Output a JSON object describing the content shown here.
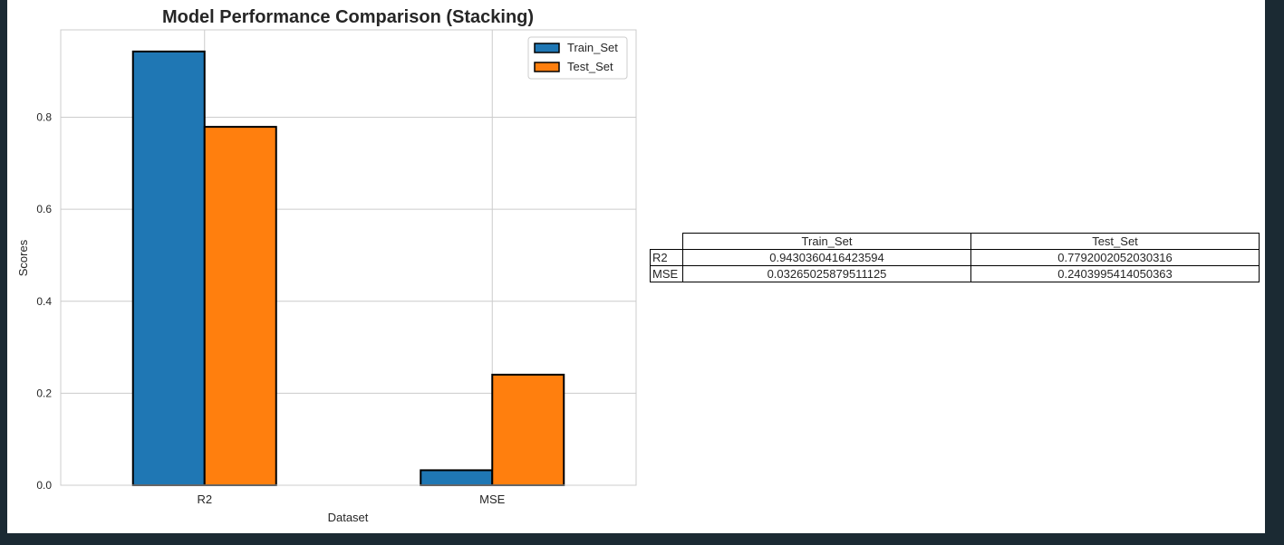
{
  "chart_data": {
    "type": "bar",
    "title": "Model Performance Comparison (Stacking)",
    "xlabel": "Dataset",
    "ylabel": "Scores",
    "categories": [
      "R2",
      "MSE"
    ],
    "series": [
      {
        "name": "Train_Set",
        "values": [
          0.9430360416423594,
          0.03265025879511125
        ],
        "color": "#1f77b4"
      },
      {
        "name": "Test_Set",
        "values": [
          0.7792002052030316,
          0.2403995414050363
        ],
        "color": "#ff7f0e"
      }
    ],
    "ylim": [
      0,
      0.99
    ],
    "yticks": [
      "0.0",
      "0.2",
      "0.4",
      "0.6",
      "0.8"
    ],
    "grid": true,
    "legend": "top-right"
  },
  "table": {
    "columns": [
      "Train_Set",
      "Test_Set"
    ],
    "rows": [
      {
        "label": "R2",
        "values": [
          "0.9430360416423594",
          "0.7792002052030316"
        ]
      },
      {
        "label": "MSE",
        "values": [
          "0.03265025879511125",
          "0.2403995414050363"
        ]
      }
    ]
  }
}
